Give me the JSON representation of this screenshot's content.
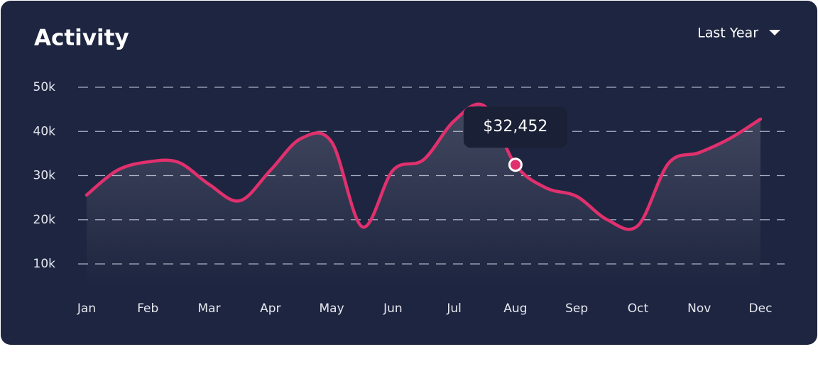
{
  "chart_data": {
    "type": "line",
    "title": "Activity",
    "period": "Last Year",
    "categories": [
      "Jan",
      null,
      "Feb",
      null,
      "Mar",
      null,
      "Apr",
      null,
      "May",
      null,
      "Jun",
      null,
      "Jul",
      null,
      "Aug",
      null,
      "Sep",
      null,
      "Oct",
      null,
      "Nov",
      null,
      "Dec"
    ],
    "series": [
      {
        "color": "#e0306e",
        "values": [
          25600,
          31200,
          33100,
          33000,
          28000,
          24300,
          31200,
          38400,
          37600,
          18400,
          31200,
          33600,
          42400,
          45700,
          32452,
          27200,
          25300,
          20000,
          18700,
          32800,
          35200,
          38400,
          42800
        ],
        "value_labels": [
          null,
          null,
          null,
          null,
          null,
          null,
          null,
          null,
          null,
          null,
          null,
          null,
          null,
          null,
          "$32,452",
          null,
          null,
          null,
          null,
          null,
          null,
          null,
          null
        ]
      }
    ],
    "ylim": [
      5000,
      50000
    ],
    "yticks": [
      {
        "value": 10000,
        "label": "10k"
      },
      {
        "value": 20000,
        "label": "20k"
      },
      {
        "value": 30000,
        "label": "30k"
      },
      {
        "value": 40000,
        "label": "40k"
      },
      {
        "value": 50000,
        "label": "50k"
      }
    ],
    "grid": true
  }
}
